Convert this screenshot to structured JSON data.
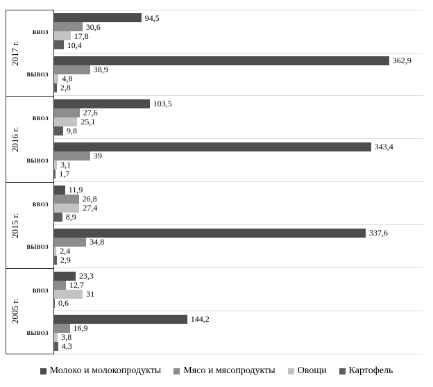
{
  "chart_data": {
    "type": "bar",
    "orientation": "horizontal",
    "title": "",
    "value_axis": {
      "min": 0,
      "max": 400,
      "gridlines": "category-boundaries"
    },
    "legend_position": "bottom",
    "series": [
      {
        "name": "Молоко и молокопродукты",
        "color": "#4d4d4d"
      },
      {
        "name": "Мясо и мясопродукты",
        "color": "#8c8c8c"
      },
      {
        "name": "Овощи",
        "color": "#c3c3c3"
      },
      {
        "name": "Картофель",
        "color": "#5c5c5c"
      }
    ],
    "groups": [
      {
        "year": "2017 г.",
        "categories": [
          {
            "label": "ввоз",
            "values": [
              94.5,
              30.6,
              17.8,
              10.4
            ],
            "value_labels": [
              "94,5",
              "30,6",
              "17,8",
              "10,4"
            ]
          },
          {
            "label": "вывоз",
            "values": [
              362.9,
              38.9,
              4.8,
              2.8
            ],
            "value_labels": [
              "362,9",
              "38,9",
              "4,8",
              "2,8"
            ]
          }
        ]
      },
      {
        "year": "2016 г.",
        "categories": [
          {
            "label": "ввоз",
            "values": [
              103.5,
              27.6,
              25.1,
              9.8
            ],
            "value_labels": [
              "103,5",
              "27,6",
              "25,1",
              "9,8"
            ]
          },
          {
            "label": "вывоз",
            "values": [
              343.4,
              39,
              3.1,
              1.7
            ],
            "value_labels": [
              "343,4",
              "39",
              "3,1",
              "1,7"
            ]
          }
        ]
      },
      {
        "year": "2015 г.",
        "categories": [
          {
            "label": "ввоз",
            "values": [
              11.9,
              26.8,
              27.4,
              8.9
            ],
            "value_labels": [
              "11,9",
              "26,8",
              "27,4",
              "8,9"
            ]
          },
          {
            "label": "вывоз",
            "values": [
              337.6,
              34.8,
              2.4,
              2.9
            ],
            "value_labels": [
              "337,6",
              "34,8",
              "2,4",
              "2,9"
            ]
          }
        ]
      },
      {
        "year": "2005 г.",
        "categories": [
          {
            "label": "ввоз",
            "values": [
              23.3,
              12.7,
              31,
              0.6
            ],
            "value_labels": [
              "23,3",
              "12,7",
              "31",
              "0,6"
            ]
          },
          {
            "label": "вывоз",
            "values": [
              144.2,
              16.9,
              3.8,
              4.3
            ],
            "value_labels": [
              "144,2",
              "16,9",
              "3,8",
              "4,3"
            ]
          }
        ]
      }
    ]
  }
}
